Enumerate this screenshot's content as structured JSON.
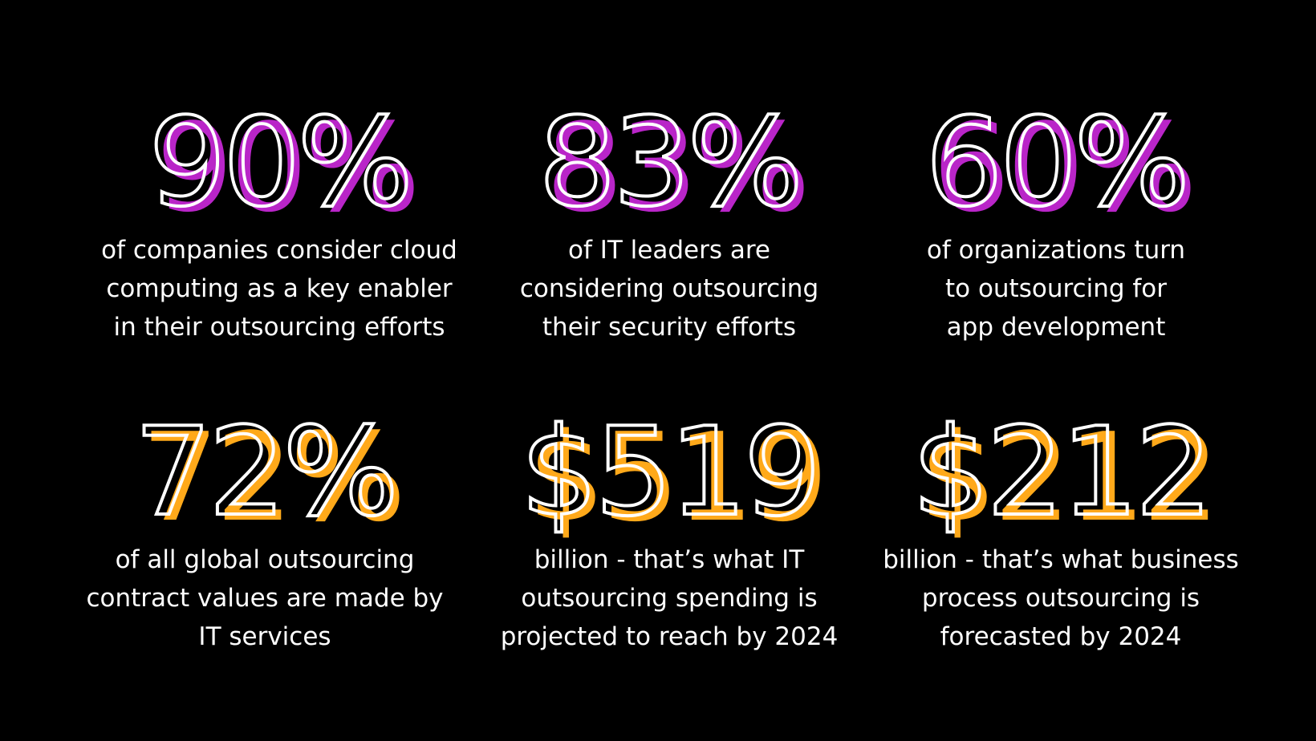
{
  "colors": {
    "accent_top": "#b925c8",
    "accent_bottom": "#ffa91a",
    "background": "#000000",
    "text": "#ffffff"
  },
  "stats": [
    {
      "value": "90%",
      "caption": "of companies consider cloud\ncomputing as a key enabler\nin their outsourcing efforts"
    },
    {
      "value": "83%",
      "caption": "of IT leaders are\nconsidering outsourcing\ntheir security efforts"
    },
    {
      "value": "60%",
      "caption": "of organizations turn\nto outsourcing for\napp development"
    },
    {
      "value": "72%",
      "caption": "of all global outsourcing\ncontract values are made by\nIT services"
    },
    {
      "value": "$519",
      "caption": "billion - that’s what IT\noutsourcing spending is\nprojected to reach by 2024"
    },
    {
      "value": "$212",
      "caption": "billion - that’s what business\nprocess outsourcing is\nforecasted by 2024"
    }
  ]
}
